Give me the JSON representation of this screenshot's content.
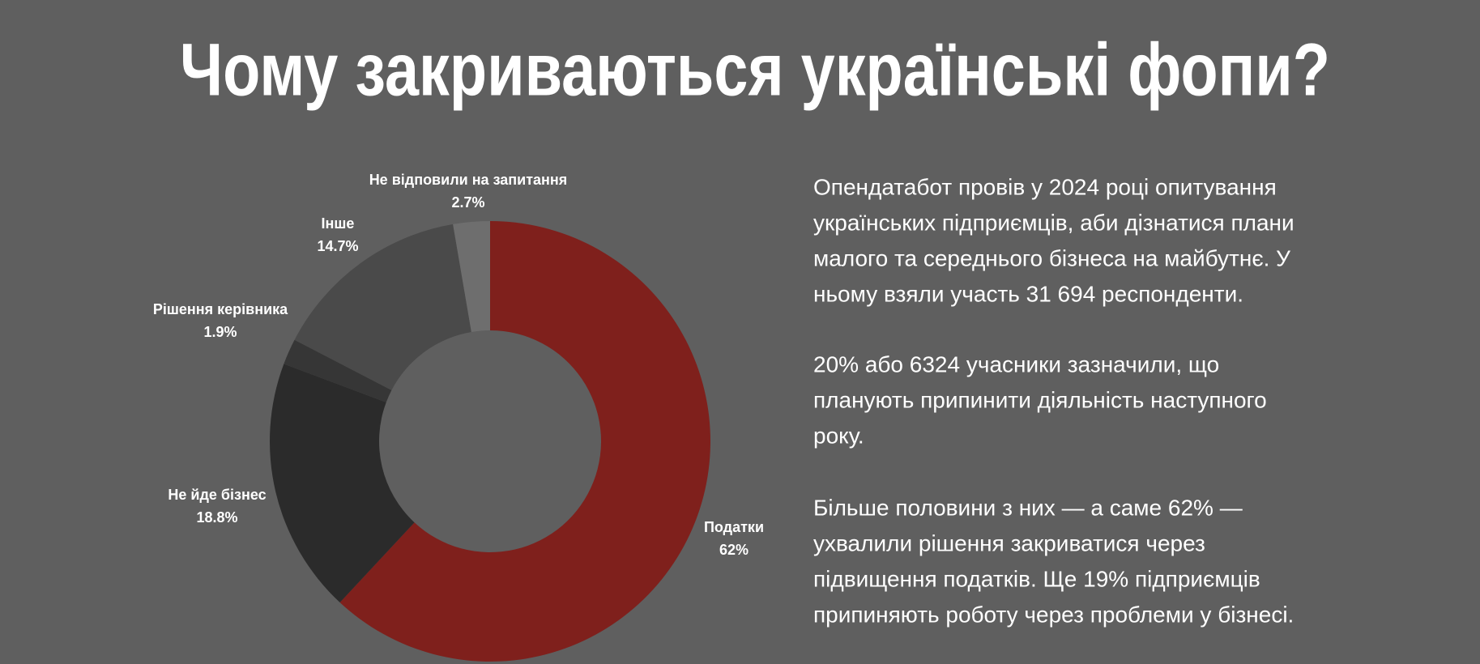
{
  "chart_data": {
    "type": "donut",
    "title": "Чому закриваються українські фопи?",
    "categories": [
      "Податки",
      "Не йде бізнес",
      "Рішення керівника",
      "Інше",
      "Не відповили на запитання"
    ],
    "values": [
      62,
      18.8,
      1.9,
      14.7,
      2.7
    ],
    "value_labels": [
      "62%",
      "18.8%",
      "1.9%",
      "14.7%",
      "2.7%"
    ],
    "colors": [
      "#7f201c",
      "#2b2b2b",
      "#363636",
      "#4a4a4a",
      "#6e6e6e"
    ]
  },
  "paragraphs": [
    {
      "lines": [
        "Опендатабот провів у 2024 році опитування",
        "українських підприємців, аби дізнатися плани",
        "малого та середнього бізнеса на майбутнє. У",
        "ньому взяли участь 31 694 респонденти."
      ]
    },
    {
      "lines": [
        "20% або 6324 учасники зазначили, що",
        "планують припинити діяльність наступного",
        "року."
      ]
    },
    {
      "lines": [
        "Більше половини з них — а саме 62% —",
        "ухвалили рішення закриватися через",
        "підвищення податків. Ще 19% підприємців",
        "припиняють роботу через проблеми у бізнесі."
      ]
    }
  ]
}
